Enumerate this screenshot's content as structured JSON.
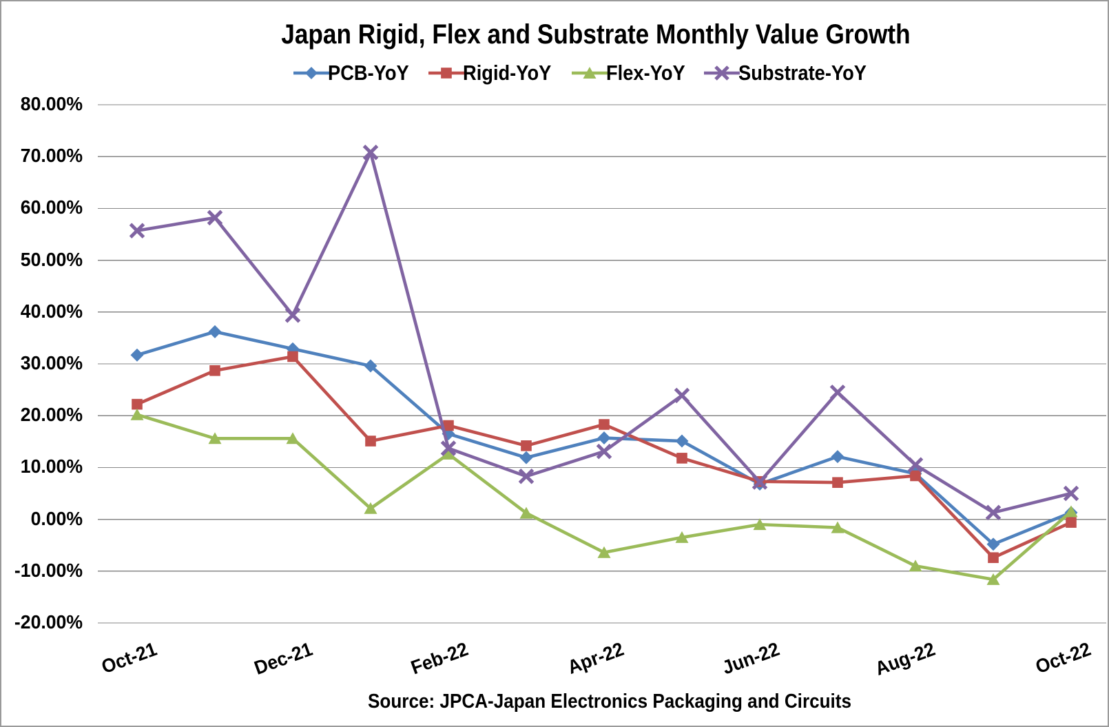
{
  "title": "Japan Rigid, Flex and Substrate Monthly Value Growth",
  "source_note": "Source: JPCA-Japan Electronics Packaging and Circuits",
  "colors": {
    "gridline": "#878787",
    "chart_border": "#9a9a9a",
    "text": "#000000",
    "background": "#ffffff"
  },
  "chart_data": {
    "type": "line",
    "title": "Japan Rigid, Flex and Substrate Monthly Value Growth",
    "xlabel": "",
    "ylabel": "",
    "y_unit": "percent YoY",
    "ylim": [
      -20,
      80
    ],
    "y_tick_step": 10,
    "y_tick_labels": [
      "80.00%",
      "70.00%",
      "60.00%",
      "50.00%",
      "40.00%",
      "30.00%",
      "20.00%",
      "10.00%",
      "0.00%",
      "-10.00%",
      "-20.00%"
    ],
    "grid": "horizontal",
    "legend_position": "top",
    "categories": [
      "Oct-21",
      "Nov-21",
      "Dec-21",
      "Jan-22",
      "Feb-22",
      "Mar-22",
      "Apr-22",
      "May-22",
      "Jun-22",
      "Jul-22",
      "Aug-22",
      "Sep-22",
      "Oct-22"
    ],
    "x_tick_step": 2,
    "x_tick_labels_shown": [
      "Oct-21",
      "Dec-21",
      "Feb-22",
      "Apr-22",
      "Jun-22",
      "Aug-22",
      "Oct-22"
    ],
    "series": [
      {
        "name": "PCB-YoY",
        "color": "#4F81BD",
        "marker": "diamond",
        "values": [
          31.7,
          36.2,
          32.9,
          29.6,
          16.5,
          11.9,
          15.7,
          15.1,
          6.8,
          12.1,
          8.8,
          -4.8,
          1.3
        ]
      },
      {
        "name": "Rigid-YoY",
        "color": "#C0504D",
        "marker": "square",
        "values": [
          22.2,
          28.7,
          31.4,
          15.1,
          18.1,
          14.2,
          18.3,
          11.8,
          7.3,
          7.1,
          8.4,
          -7.4,
          -0.6
        ]
      },
      {
        "name": "Flex-YoY",
        "color": "#9BBB59",
        "marker": "triangle",
        "values": [
          20.2,
          15.6,
          15.6,
          2.1,
          12.6,
          1.2,
          -6.4,
          -3.5,
          -1.0,
          -1.6,
          -9.0,
          -11.6,
          1.5
        ]
      },
      {
        "name": "Substrate-YoY",
        "color": "#8064A2",
        "marker": "x",
        "values": [
          55.7,
          58.2,
          39.4,
          70.8,
          13.7,
          8.3,
          13.1,
          23.9,
          7.2,
          24.5,
          10.5,
          1.3,
          5.0
        ]
      }
    ]
  }
}
